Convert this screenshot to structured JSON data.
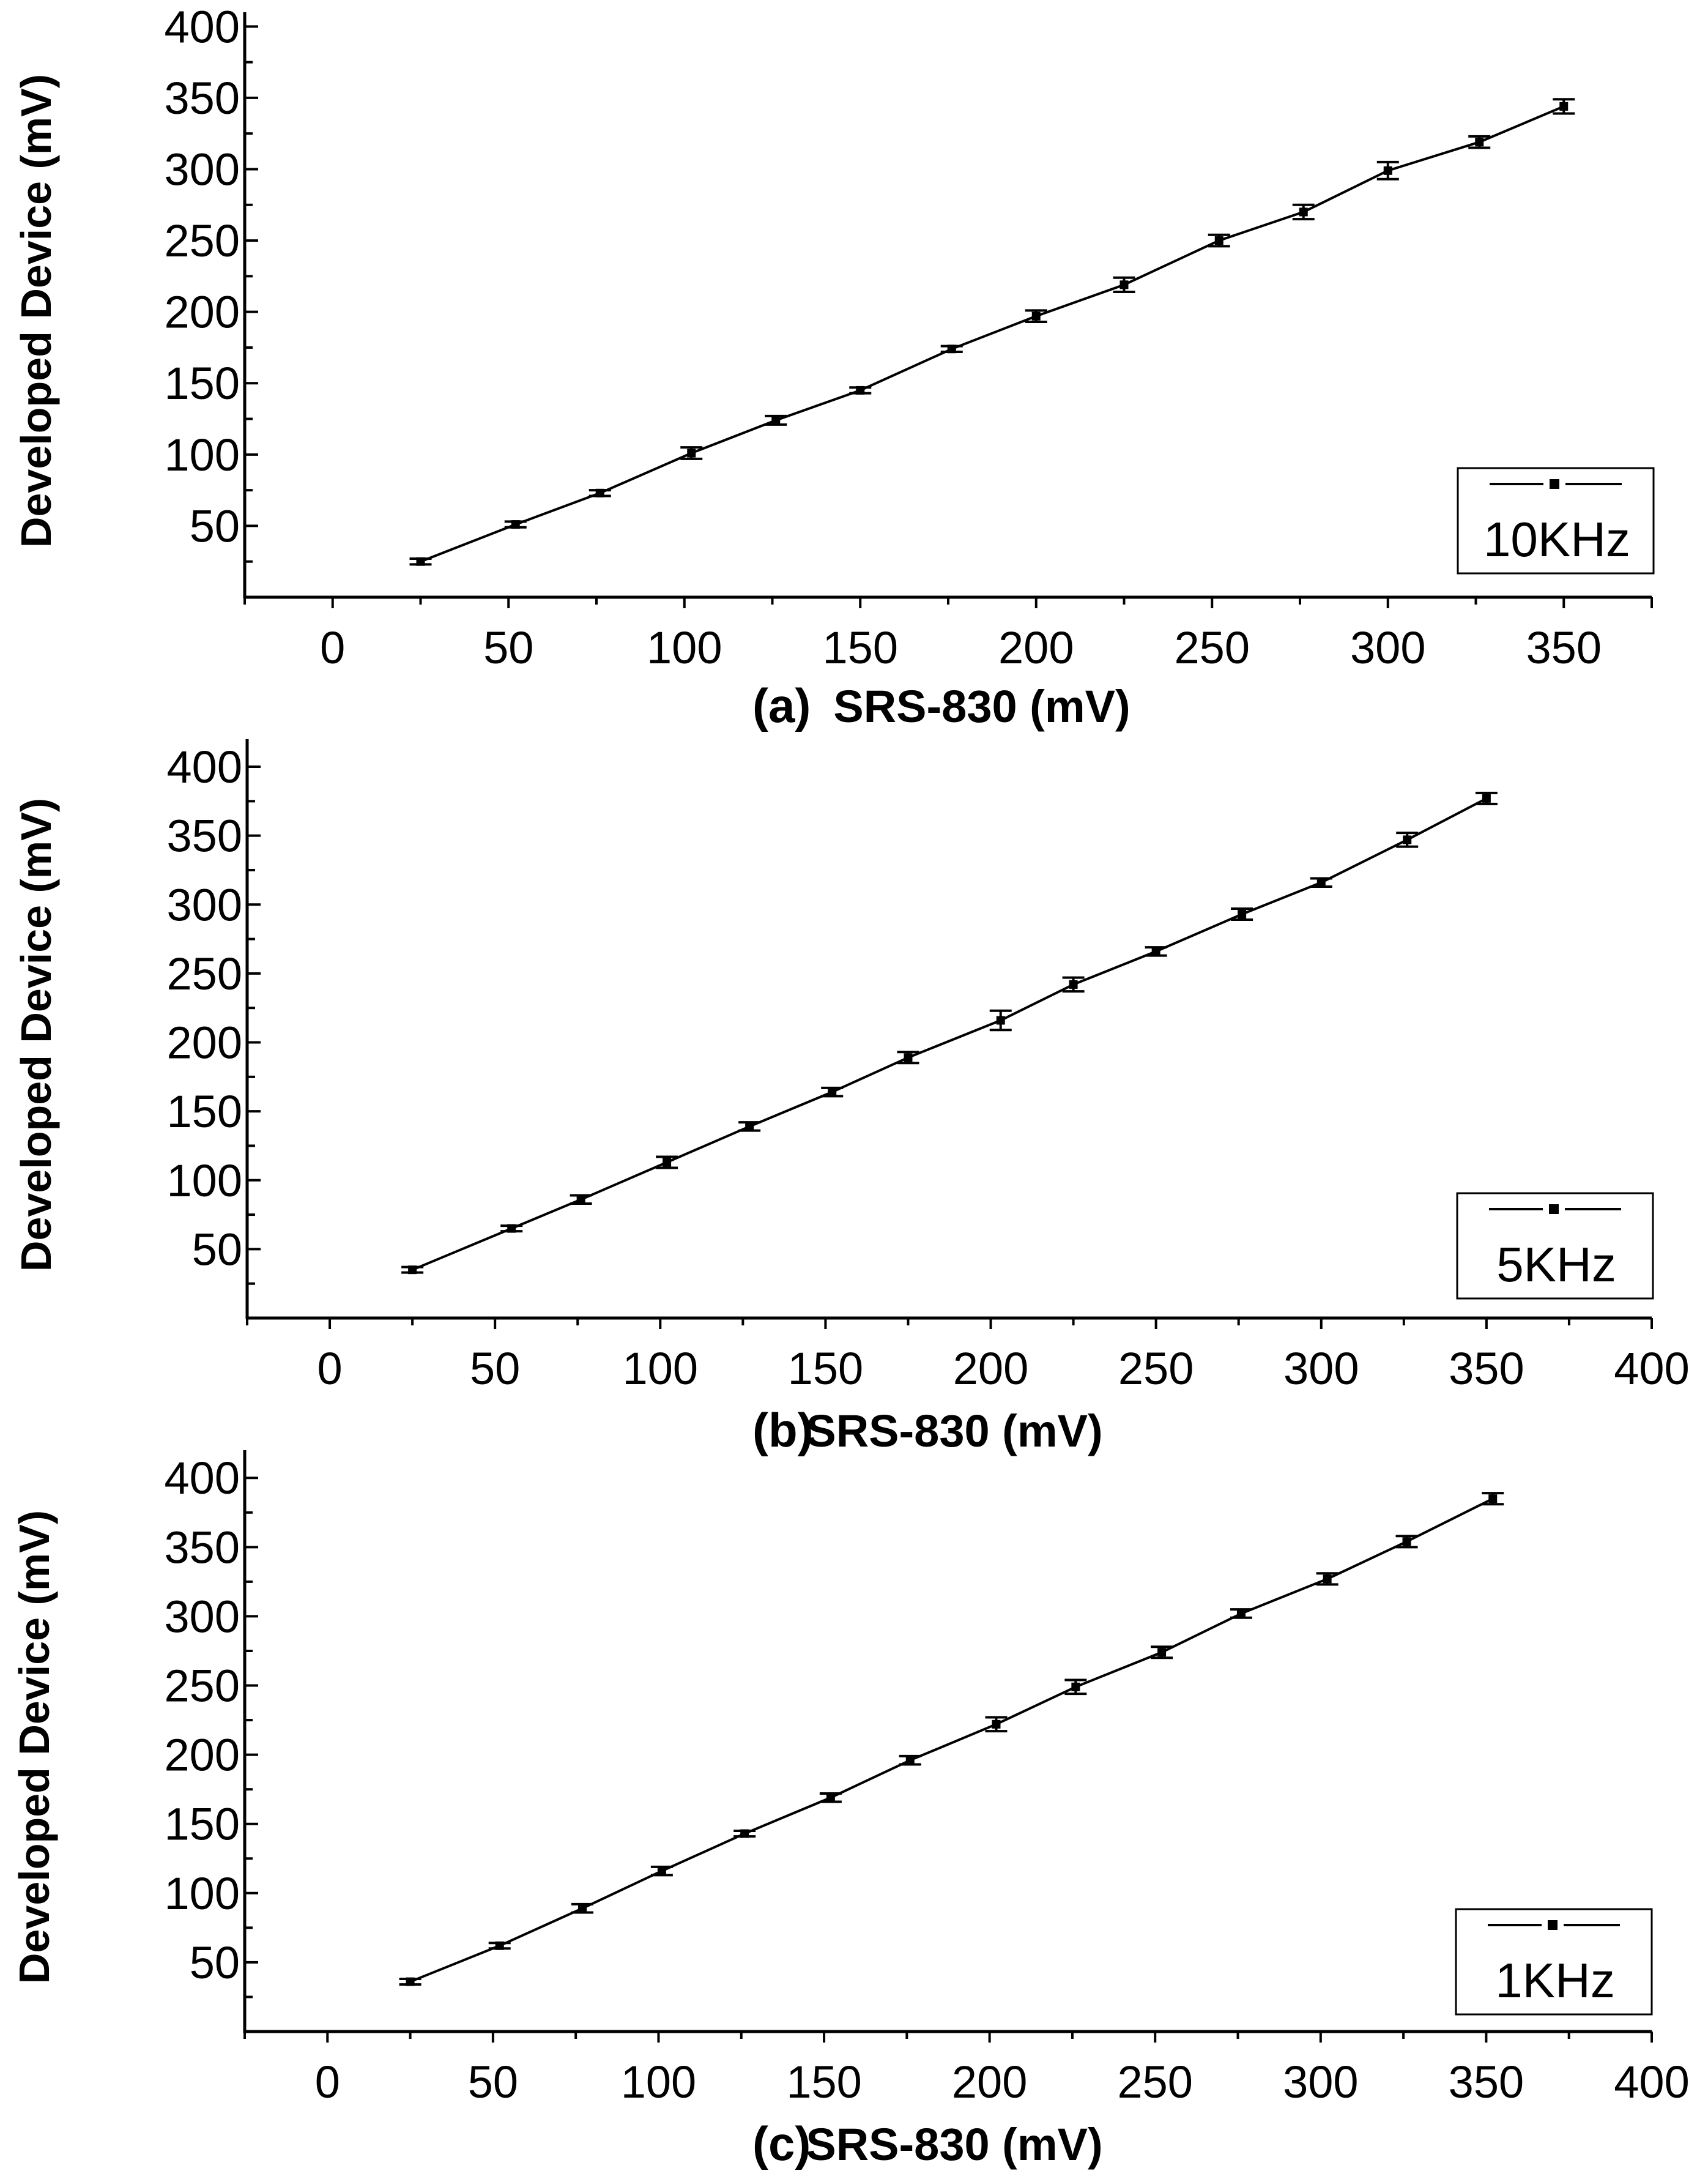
{
  "chart_data": [
    {
      "type": "line",
      "panel": "(a)",
      "xlabel": "SRS-830 (mV)",
      "ylabel": "Developed Device  (mV)",
      "xlim": [
        -25,
        375
      ],
      "ylim": [
        0,
        410
      ],
      "xticks": [
        0,
        50,
        100,
        150,
        200,
        250,
        300,
        350
      ],
      "yticks": [
        50,
        100,
        150,
        200,
        250,
        300,
        350,
        400
      ],
      "legend_position": "bottom-right",
      "series": [
        {
          "name": "10KHz",
          "marker": "square",
          "x": [
            25,
            52,
            76,
            102,
            126,
            150,
            176,
            200,
            225,
            252,
            276,
            300,
            326,
            350
          ],
          "y": [
            25,
            51,
            73,
            101,
            124,
            145,
            174,
            197,
            219,
            250,
            270,
            299,
            319,
            344
          ],
          "error": [
            2,
            2,
            2,
            4,
            3,
            2,
            2,
            4,
            5,
            4,
            5,
            6,
            4,
            5
          ]
        }
      ]
    },
    {
      "type": "line",
      "panel": "(b)",
      "xlabel": "SRS-830 (mV)",
      "ylabel": "Developed Device  (mV)",
      "xlim": [
        -25,
        400
      ],
      "ylim": [
        0,
        420
      ],
      "xticks": [
        0,
        50,
        100,
        150,
        200,
        250,
        300,
        350,
        400
      ],
      "yticks": [
        50,
        100,
        150,
        200,
        250,
        300,
        350,
        400
      ],
      "legend_position": "bottom-right",
      "series": [
        {
          "name": "5KHz",
          "marker": "square",
          "x": [
            25,
            55,
            76,
            102,
            127,
            152,
            175,
            203,
            225,
            250,
            276,
            300,
            326,
            350
          ],
          "y": [
            35,
            65,
            86,
            113,
            139,
            164,
            189,
            216,
            242,
            266,
            293,
            316,
            347,
            377
          ],
          "error": [
            2,
            2,
            3,
            4,
            3,
            3,
            4,
            7,
            5,
            3,
            4,
            3,
            5,
            4
          ]
        }
      ]
    },
    {
      "type": "line",
      "panel": "(c)",
      "xlabel": "SRS-830 (mV)",
      "ylabel": "Developed Device (mV)",
      "xlim": [
        -25,
        400
      ],
      "ylim": [
        0,
        420
      ],
      "xticks": [
        0,
        50,
        100,
        150,
        200,
        250,
        300,
        350,
        400
      ],
      "yticks": [
        50,
        100,
        150,
        200,
        250,
        300,
        350,
        400
      ],
      "legend_position": "bottom-right",
      "series": [
        {
          "name": "1KHz",
          "marker": "square",
          "x": [
            25,
            52,
            77,
            101,
            126,
            152,
            176,
            202,
            226,
            252,
            276,
            302,
            326,
            352
          ],
          "y": [
            36,
            62,
            89,
            116,
            143,
            169,
            196,
            222,
            249,
            274,
            302,
            327,
            354,
            385
          ],
          "error": [
            2,
            2,
            3,
            3,
            2,
            3,
            3,
            5,
            5,
            4,
            3,
            4,
            4,
            4
          ]
        }
      ]
    }
  ]
}
